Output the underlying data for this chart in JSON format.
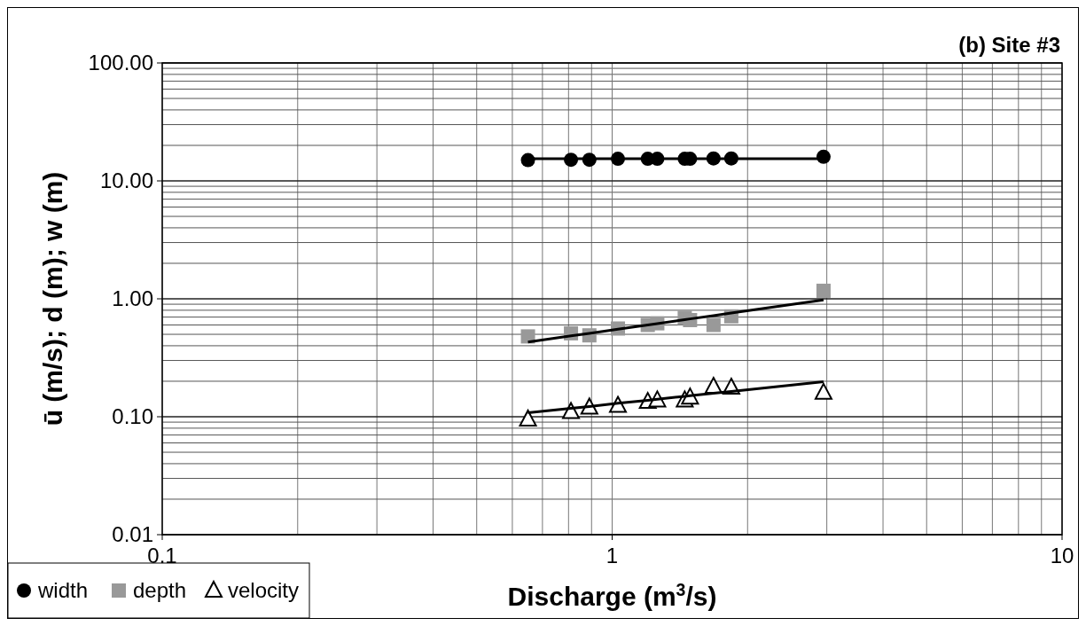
{
  "chart_data": {
    "type": "scatter",
    "title": "(b) Site #3",
    "xlabel": "Discharge (m$^{3}$/s)",
    "ylabel": "ū (m/s); d (m); w (m)",
    "x": [
      0.65,
      0.81,
      0.89,
      1.03,
      1.2,
      1.26,
      1.45,
      1.49,
      1.68,
      1.84,
      2.95
    ],
    "series": [
      {
        "name": "width",
        "color": "#000000",
        "marker": "circle",
        "values": [
          15.0,
          15.1,
          15.1,
          15.4,
          15.4,
          15.4,
          15.4,
          15.4,
          15.5,
          15.5,
          16.0
        ]
      },
      {
        "name": "depth",
        "color": "#999999",
        "marker": "square",
        "values": [
          0.48,
          0.51,
          0.49,
          0.56,
          0.6,
          0.62,
          0.69,
          0.66,
          0.6,
          0.71,
          1.17
        ]
      },
      {
        "name": "velocity",
        "color": "#ffffff",
        "marker": "triangle",
        "values": [
          0.095,
          0.11,
          0.12,
          0.124,
          0.134,
          0.138,
          0.138,
          0.146,
          0.18,
          0.177,
          0.16
        ]
      },
      {
        "type": "line",
        "color": "#000000",
        "marker": "none",
        "values": [
          15.4,
          15.4,
          15.4,
          15.4,
          15.4,
          15.4,
          15.4,
          15.4,
          15.4,
          15.4,
          15.4
        ]
      },
      {
        "type": "line",
        "color": "#000000",
        "marker": "none",
        "values": [
          0.43,
          0.485,
          0.51,
          0.553,
          0.601,
          0.617,
          0.666,
          0.676,
          0.721,
          0.758,
          0.98
        ]
      },
      {
        "type": "line",
        "color": "#000000",
        "marker": "none",
        "values": [
          0.108,
          0.118,
          0.122,
          0.13,
          0.138,
          0.141,
          0.149,
          0.151,
          0.158,
          0.164,
          0.198
        ]
      }
    ],
    "log": "xy",
    "xlim": [
      0.1,
      10
    ],
    "ylim": [
      0.01,
      100
    ],
    "xticks": [
      0.1,
      1,
      10
    ],
    "yticks": [
      {
        "value": 0.01,
        "label": "0.01"
      },
      {
        "value": 0.1,
        "label": "0.10"
      },
      {
        "value": 1,
        "label": "1.00"
      },
      {
        "value": 10,
        "label": "10.00"
      },
      {
        "value": 100,
        "label": "100.00"
      }
    ],
    "grid": true,
    "legend": "bottom left"
  }
}
